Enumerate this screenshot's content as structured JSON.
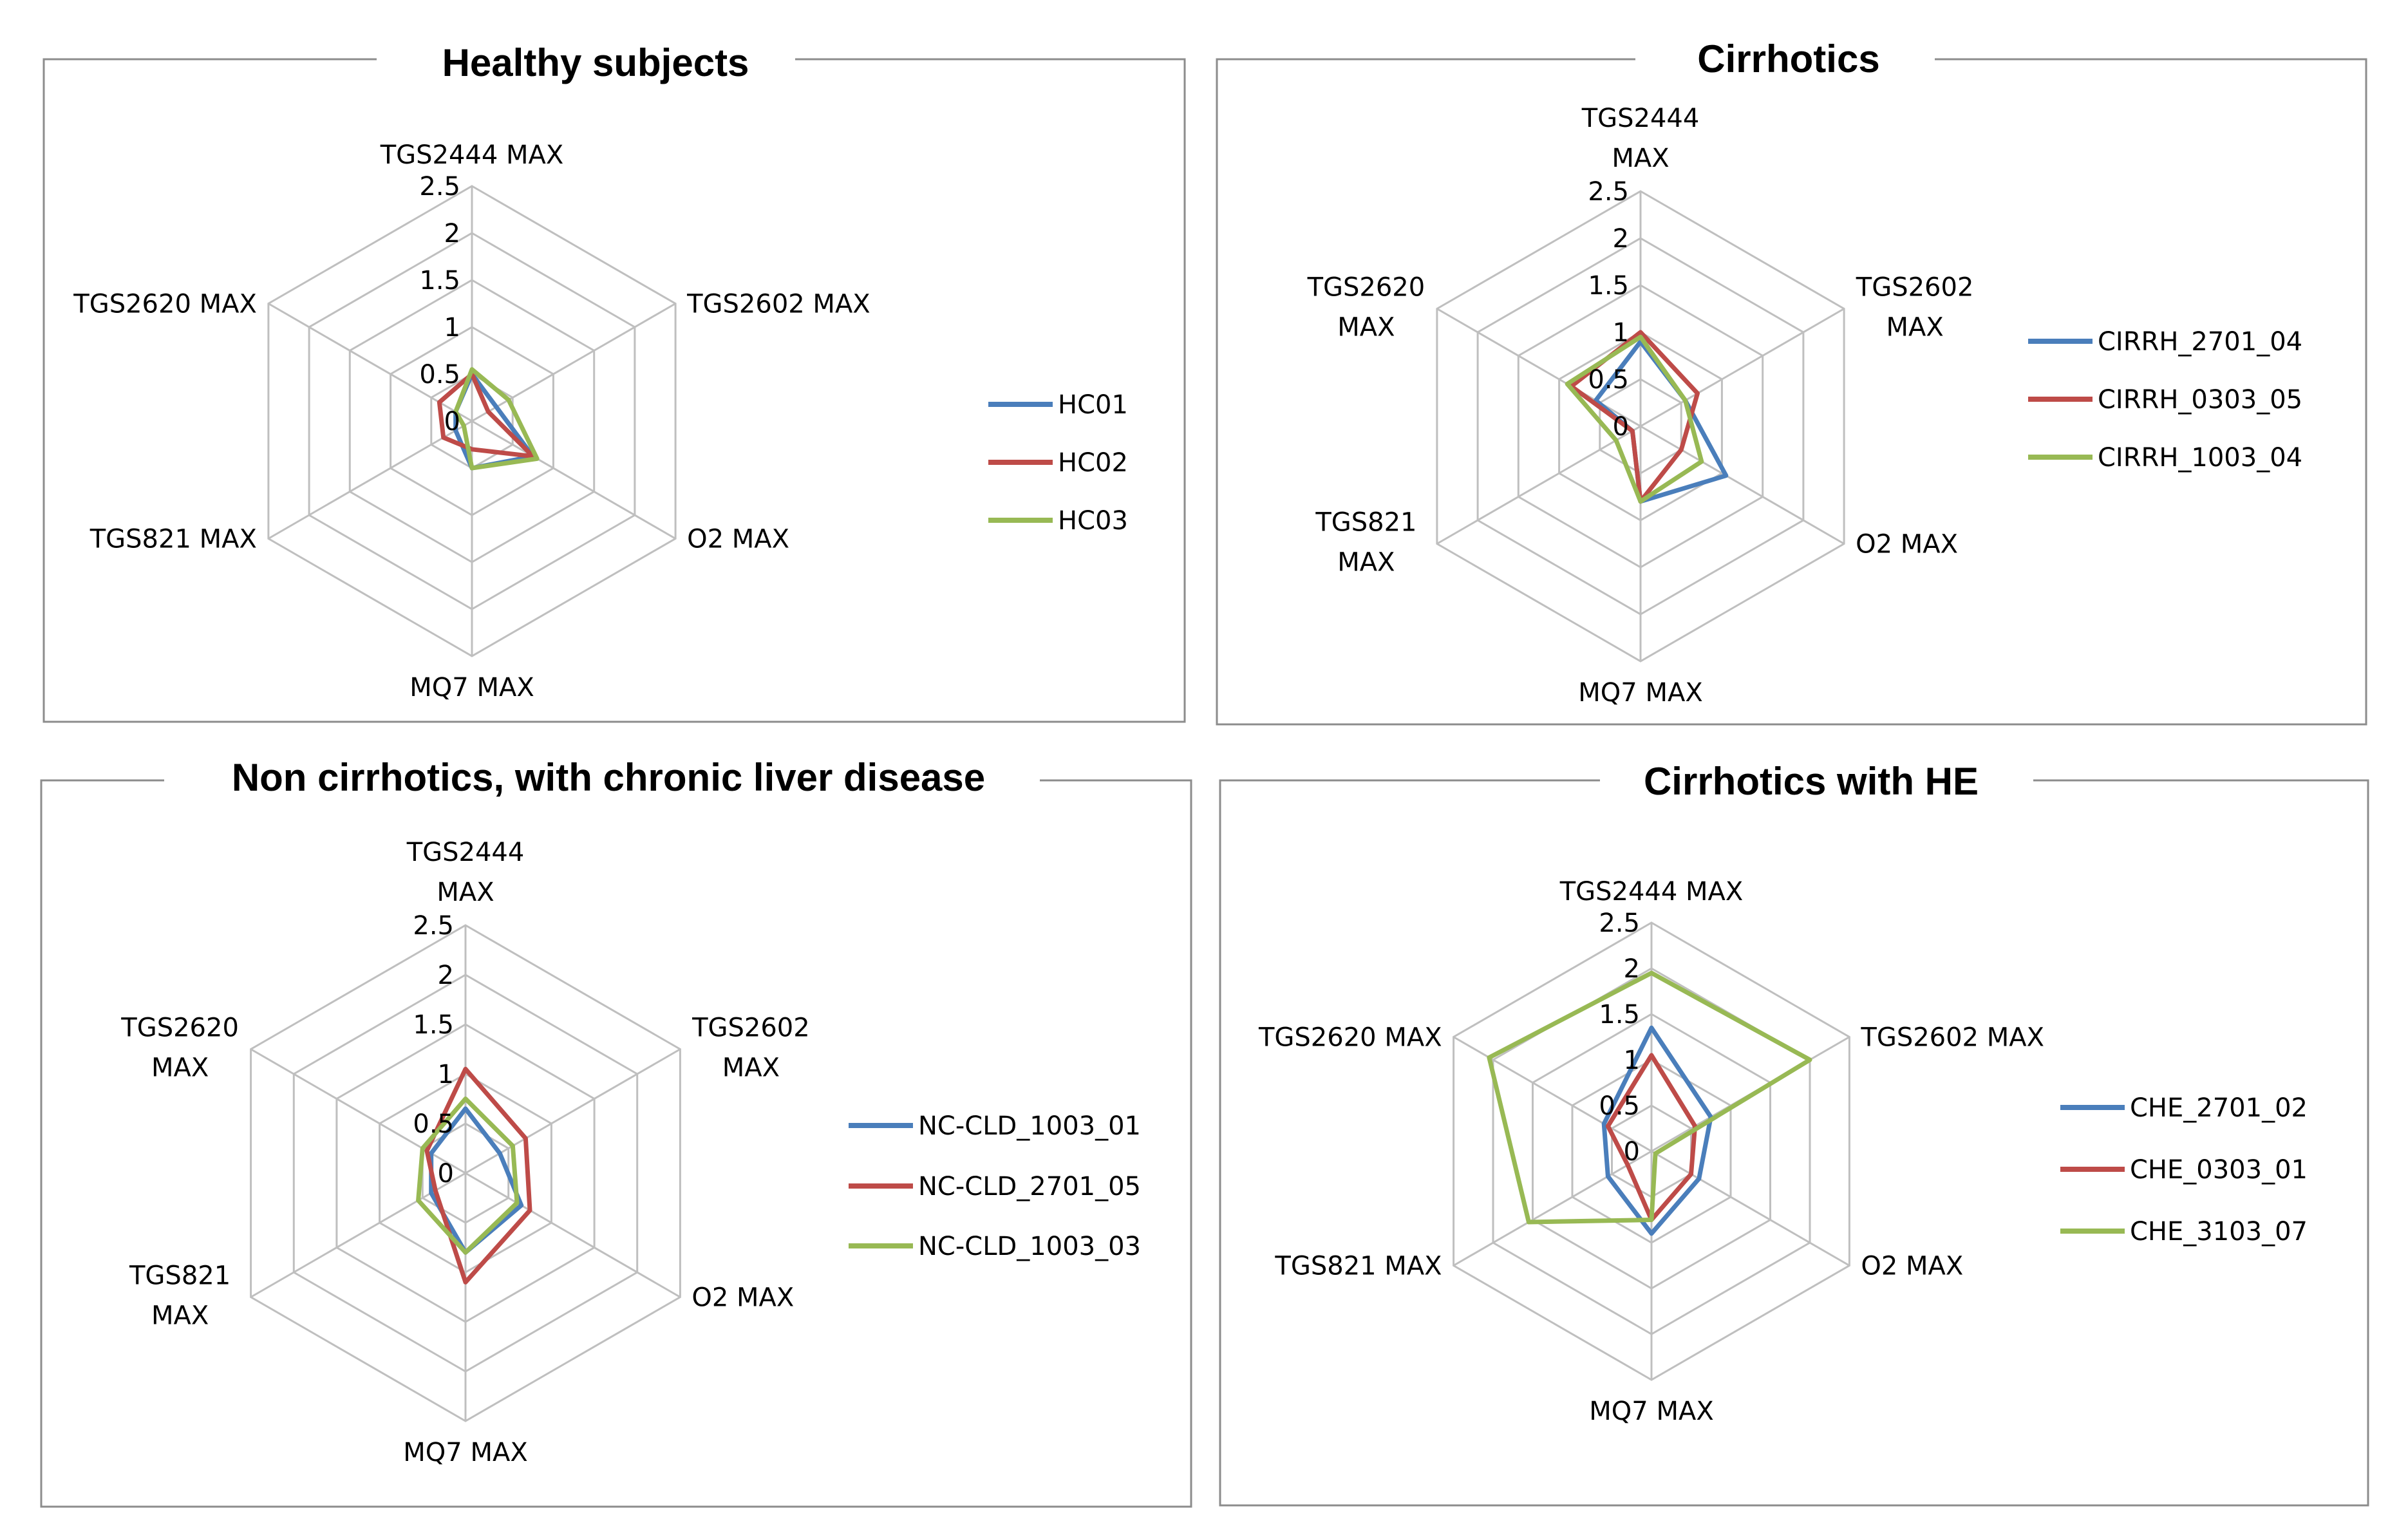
{
  "colors": {
    "series1": "#4a7ebb",
    "series2": "#be4b48",
    "series3": "#98b954"
  },
  "chart_data": [
    {
      "type": "radar",
      "title": "Healthy subjects",
      "axes": [
        {
          "name": "TGS2444 MAX",
          "lines": [
            "TGS2444 MAX"
          ]
        },
        {
          "name": "TGS2602 MAX",
          "lines": [
            "TGS2602 MAX"
          ]
        },
        {
          "name": "O2 MAX",
          "lines": [
            "O2 MAX"
          ]
        },
        {
          "name": "MQ7 MAX",
          "lines": [
            "MQ7 MAX"
          ]
        },
        {
          "name": "TGS821 MAX",
          "lines": [
            "TGS821 MAX"
          ]
        },
        {
          "name": "TGS2620 MAX",
          "lines": [
            "TGS2620 MAX"
          ]
        }
      ],
      "ticks": [
        "0",
        "0.5",
        "1",
        "1.5",
        "2",
        "2.5"
      ],
      "rmax": 2.5,
      "legend_position": "right",
      "series": [
        {
          "name": "HC01",
          "values": [
            0.5,
            0.3,
            0.75,
            0.5,
            0.2,
            0.2
          ]
        },
        {
          "name": "HC02",
          "values": [
            0.5,
            0.2,
            0.75,
            0.3,
            0.35,
            0.4
          ]
        },
        {
          "name": "HC03",
          "values": [
            0.55,
            0.45,
            0.8,
            0.5,
            0.1,
            0.2
          ]
        }
      ]
    },
    {
      "type": "radar",
      "title": "Cirrhotics",
      "axes": [
        {
          "name": "TGS2444 MAX",
          "lines": [
            "TGS2444",
            "MAX"
          ]
        },
        {
          "name": "TGS2602 MAX",
          "lines": [
            "TGS2602",
            "MAX"
          ]
        },
        {
          "name": "O2 MAX",
          "lines": [
            "O2 MAX"
          ]
        },
        {
          "name": "MQ7 MAX",
          "lines": [
            "MQ7 MAX"
          ]
        },
        {
          "name": "TGS821 MAX",
          "lines": [
            "TGS821",
            "MAX"
          ]
        },
        {
          "name": "TGS2620 MAX",
          "lines": [
            "TGS2620",
            "MAX"
          ]
        }
      ],
      "ticks": [
        "0",
        "0.5",
        "1",
        "1.5",
        "2",
        "2.5"
      ],
      "rmax": 2.5,
      "legend_position": "right",
      "series": [
        {
          "name": "CIRRH_2701_04",
          "values": [
            0.9,
            0.55,
            1.05,
            0.8,
            0.1,
            0.55
          ]
        },
        {
          "name": "CIRRH_0303_05",
          "values": [
            1.0,
            0.7,
            0.5,
            0.8,
            0.1,
            0.85
          ]
        },
        {
          "name": "CIRRH_1003_04",
          "values": [
            0.95,
            0.55,
            0.75,
            0.8,
            0.3,
            0.9
          ]
        }
      ]
    },
    {
      "type": "radar",
      "title": "Non cirrhotics, with chronic liver disease",
      "axes": [
        {
          "name": "TGS2444 MAX",
          "lines": [
            "TGS2444",
            "MAX"
          ]
        },
        {
          "name": "TGS2602 MAX",
          "lines": [
            "TGS2602",
            "MAX"
          ]
        },
        {
          "name": "O2 MAX",
          "lines": [
            "O2 MAX"
          ]
        },
        {
          "name": "MQ7 MAX",
          "lines": [
            "MQ7 MAX"
          ]
        },
        {
          "name": "TGS821 MAX",
          "lines": [
            "TGS821",
            "MAX"
          ]
        },
        {
          "name": "TGS2620 MAX",
          "lines": [
            "TGS2620",
            "MAX"
          ]
        }
      ],
      "ticks": [
        "0",
        "0.5",
        "1",
        "1.5",
        "2",
        "2.5"
      ],
      "rmax": 2.5,
      "legend_position": "right",
      "series": [
        {
          "name": "NC-CLD_1003_01",
          "values": [
            0.65,
            0.4,
            0.65,
            0.8,
            0.4,
            0.4
          ]
        },
        {
          "name": "NC-CLD_2701_05",
          "values": [
            1.05,
            0.7,
            0.75,
            1.1,
            0.35,
            0.45
          ]
        },
        {
          "name": "NC-CLD_1003_03",
          "values": [
            0.75,
            0.55,
            0.6,
            0.8,
            0.55,
            0.5
          ]
        }
      ]
    },
    {
      "type": "radar",
      "title": "Cirrhotics with HE",
      "axes": [
        {
          "name": "TGS2444 MAX",
          "lines": [
            "TGS2444 MAX"
          ]
        },
        {
          "name": "TGS2602 MAX",
          "lines": [
            "TGS2602 MAX"
          ]
        },
        {
          "name": "O2 MAX",
          "lines": [
            "O2 MAX"
          ]
        },
        {
          "name": "MQ7 MAX",
          "lines": [
            "MQ7 MAX"
          ]
        },
        {
          "name": "TGS821 MAX",
          "lines": [
            "TGS821 MAX"
          ]
        },
        {
          "name": "TGS2620 MAX",
          "lines": [
            "TGS2620 MAX"
          ]
        }
      ],
      "ticks": [
        "0",
        "0.5",
        "1",
        "1.5",
        "2",
        "2.5"
      ],
      "rmax": 2.5,
      "legend_position": "right",
      "series": [
        {
          "name": "CHE_2701_02",
          "values": [
            1.35,
            0.75,
            0.6,
            0.9,
            0.55,
            0.6
          ]
        },
        {
          "name": "CHE_0303_01",
          "values": [
            1.05,
            0.55,
            0.5,
            0.75,
            0.3,
            0.55
          ]
        },
        {
          "name": "CHE_3103_07",
          "values": [
            1.95,
            2.0,
            0.05,
            0.75,
            1.55,
            2.05
          ]
        }
      ]
    }
  ]
}
